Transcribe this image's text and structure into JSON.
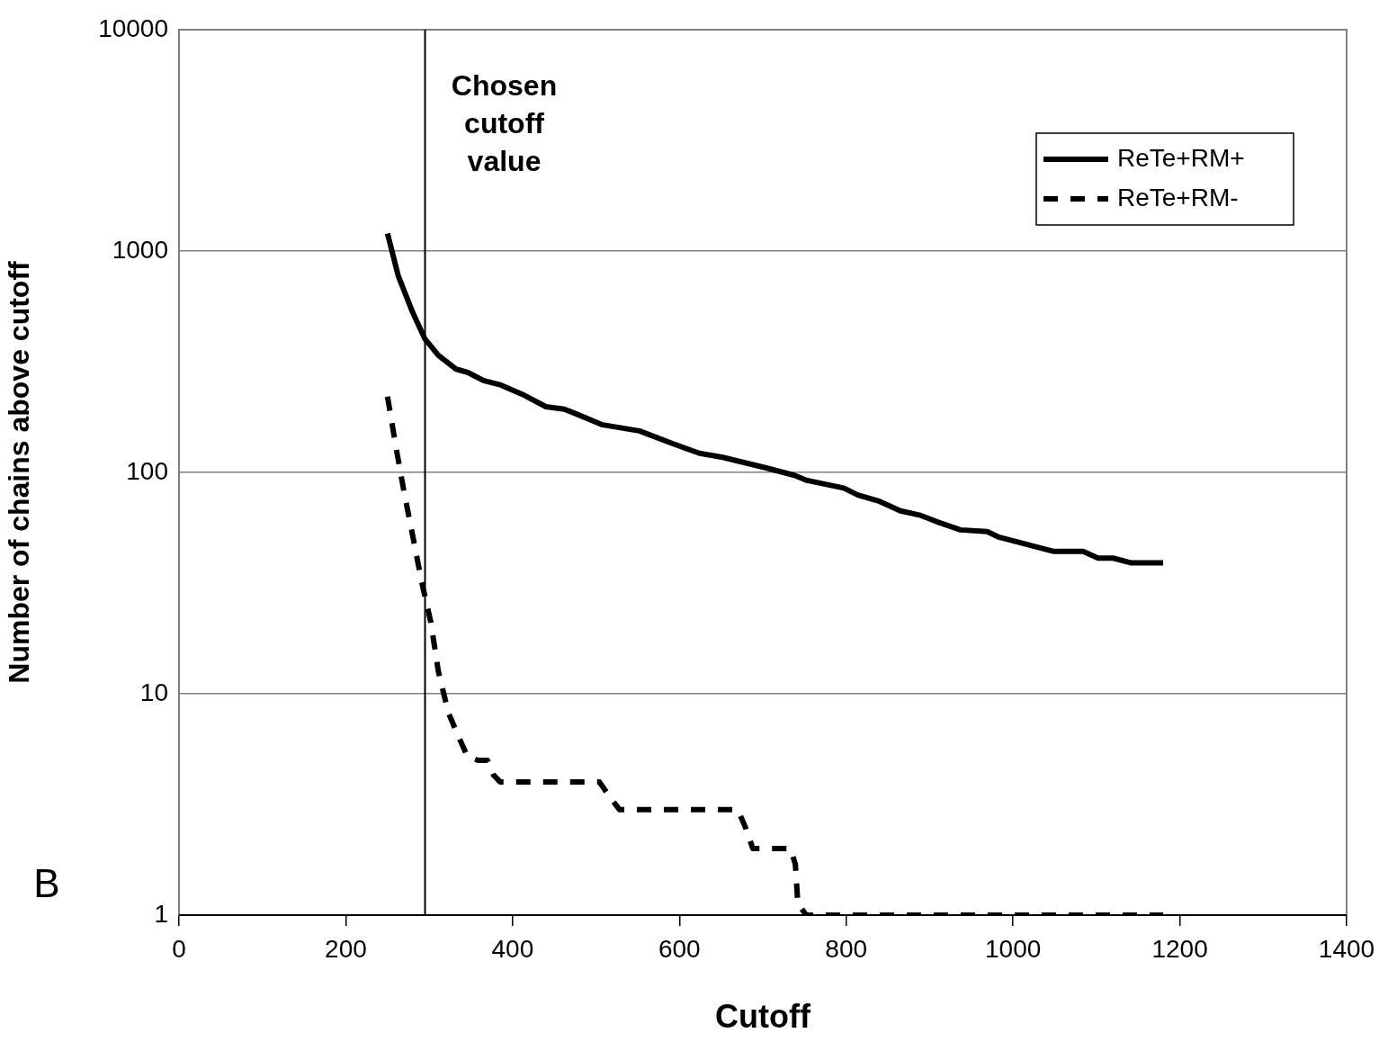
{
  "chart_data": {
    "type": "line",
    "xlabel": "Cutoff",
    "ylabel": "Number of chains above cutoff",
    "xlim": [
      0,
      1400
    ],
    "xticks": [
      0,
      200,
      400,
      600,
      800,
      1000,
      1200,
      1400
    ],
    "ylim": [
      1,
      10000
    ],
    "yticks": [
      1,
      10,
      100,
      1000,
      10000
    ],
    "log": "y",
    "grid": "y",
    "legend": "top right",
    "marker": "none",
    "series": [
      {
        "name": "ReTe+RM+",
        "color": "#000000",
        "line_style": "solid",
        "x": [
          250,
          263,
          280,
          295,
          311,
          332,
          347,
          365,
          386,
          411,
          440,
          462,
          476,
          508,
          552,
          592,
          624,
          652,
          703,
          738,
          753,
          797,
          814,
          840,
          865,
          889,
          908,
          937,
          969,
          983,
          1048,
          1084,
          1102,
          1120,
          1142,
          1180
        ],
        "values": [
          1200,
          770,
          530,
          400,
          338,
          293,
          282,
          260,
          248,
          226,
          198,
          193,
          184,
          164,
          154,
          135,
          122,
          117,
          105,
          97,
          92,
          85,
          79,
          74,
          67,
          64,
          60,
          55,
          54,
          51,
          44,
          44,
          41,
          41,
          39,
          39
        ]
      },
      {
        "name": "ReTe+RM-",
        "color": "#000000",
        "line_style": "dashed",
        "x": [
          250,
          260,
          270,
          281,
          291,
          302,
          311,
          323,
          336,
          346,
          359,
          370,
          377,
          385,
          504,
          517,
          528,
          670,
          679,
          688,
          733,
          739,
          742,
          752,
          1180
        ],
        "values": [
          220,
          131,
          81,
          50,
          32,
          21,
          12.6,
          8.2,
          6.3,
          5.2,
          5,
          5,
          4.3,
          4,
          4,
          3.4,
          3,
          3,
          2.5,
          2,
          2,
          1.7,
          1.13,
          1,
          1
        ]
      }
    ],
    "ref_lines": [
      {
        "axis": "x",
        "value": 295,
        "label": "Chosen cutoff value",
        "color": "#000000"
      }
    ],
    "annotations": [
      "B"
    ]
  }
}
